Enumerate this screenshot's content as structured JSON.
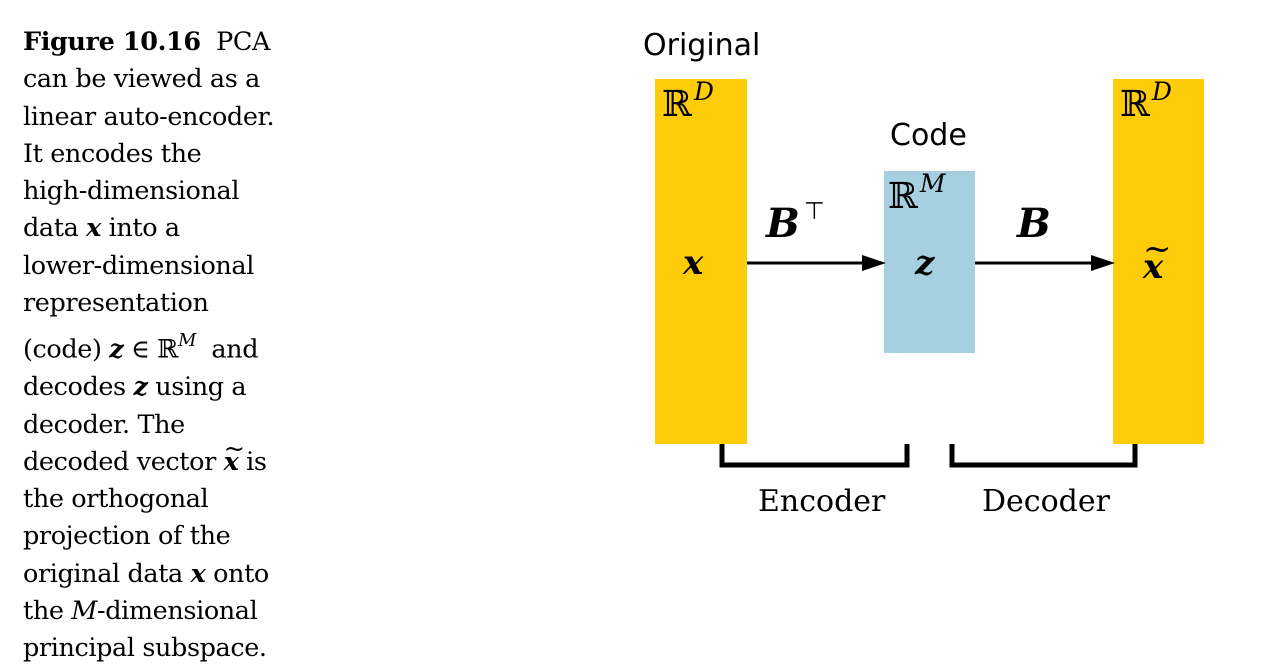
{
  "caption": {
    "figure_label": "Figure 10.16",
    "lines": [
      "PCA",
      "can be viewed as a",
      "linear auto-encoder.",
      "It encodes the",
      "high-dimensional",
      "data",
      "into a",
      "lower-dimensional",
      "representation",
      "(code)",
      "and",
      "decodes",
      "using a",
      "decoder. The",
      "decoded vector",
      "is",
      "the orthogonal",
      "projection of the",
      "original data",
      "onto",
      "the",
      "-dimensional",
      "principal subspace."
    ],
    "math": {
      "x": "x",
      "z": "z",
      "element_of": "∈",
      "reals": "ℝ",
      "M": "M",
      "tilde": "~"
    }
  },
  "diagram": {
    "original_label": "Original",
    "code_label": "Code",
    "space_symbol": "ℝ",
    "original_dim": "D",
    "code_dim": "M",
    "recon_dim": "D",
    "input_var": "x",
    "code_var": "z",
    "recon_var": "x",
    "recon_tilde": "~",
    "encoder_matrix": "B",
    "transpose_symbol": "⊤",
    "decoder_matrix": "B",
    "encoder_label": "Encoder",
    "decoder_label": "Decoder",
    "colors": {
      "data_block": "#FFCC0A",
      "code_block": "#A6CFE0",
      "lines": "#000000"
    }
  }
}
